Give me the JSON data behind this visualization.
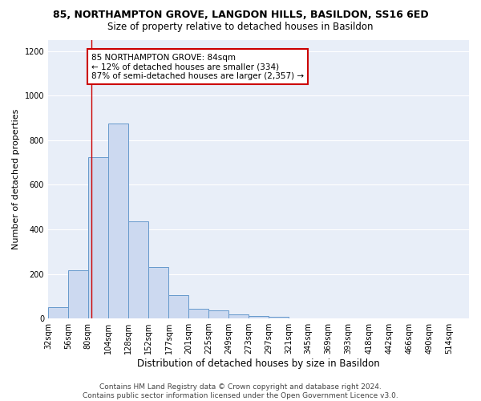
{
  "title": "85, NORTHAMPTON GROVE, LANGDON HILLS, BASILDON, SS16 6ED",
  "subtitle": "Size of property relative to detached houses in Basildon",
  "xlabel": "Distribution of detached houses by size in Basildon",
  "ylabel": "Number of detached properties",
  "bin_labels": [
    "32sqm",
    "56sqm",
    "80sqm",
    "104sqm",
    "128sqm",
    "152sqm",
    "177sqm",
    "201sqm",
    "225sqm",
    "249sqm",
    "273sqm",
    "297sqm",
    "321sqm",
    "345sqm",
    "369sqm",
    "393sqm",
    "418sqm",
    "442sqm",
    "466sqm",
    "490sqm",
    "514sqm"
  ],
  "bar_values": [
    50,
    215,
    725,
    875,
    435,
    230,
    105,
    45,
    37,
    20,
    12,
    8,
    0,
    0,
    0,
    0,
    0,
    0,
    0,
    0,
    0
  ],
  "bar_color": "#ccd9f0",
  "bar_edge_color": "#6699cc",
  "property_line_x": 84,
  "bin_edges": [
    32,
    56,
    80,
    104,
    128,
    152,
    177,
    201,
    225,
    249,
    273,
    297,
    321,
    345,
    369,
    393,
    418,
    442,
    466,
    490,
    514
  ],
  "annotation_text": "85 NORTHAMPTON GROVE: 84sqm\n← 12% of detached houses are smaller (334)\n87% of semi-detached houses are larger (2,357) →",
  "annotation_box_color": "#ffffff",
  "annotation_box_edge_color": "#cc0000",
  "vline_color": "#cc0000",
  "ylim": [
    0,
    1250
  ],
  "yticks": [
    0,
    200,
    400,
    600,
    800,
    1000,
    1200
  ],
  "background_color": "#e8eef8",
  "grid_color": "#ffffff",
  "footnote": "Contains HM Land Registry data © Crown copyright and database right 2024.\nContains public sector information licensed under the Open Government Licence v3.0.",
  "title_fontsize": 9,
  "subtitle_fontsize": 8.5,
  "xlabel_fontsize": 8.5,
  "ylabel_fontsize": 8,
  "tick_fontsize": 7,
  "annotation_fontsize": 7.5,
  "footnote_fontsize": 6.5
}
